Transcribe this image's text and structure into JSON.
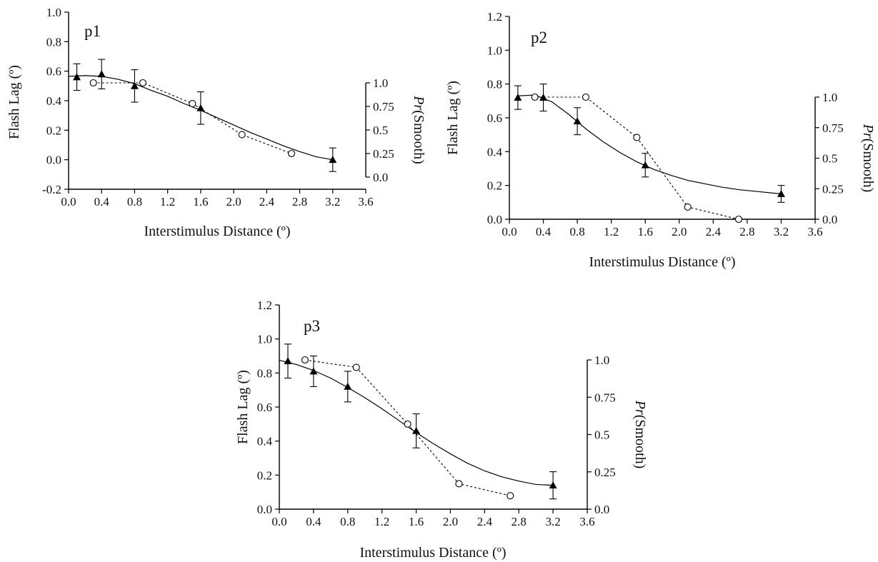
{
  "chart_data": [
    {
      "type": "line",
      "panel_label": "p1",
      "xlabel": "Interstimulus Distance (º)",
      "ylabel": "Flash Lag (º)",
      "y2label_italic": "Pr",
      "y2label_rest": "(Smooth)",
      "xlim": [
        0.0,
        3.6
      ],
      "xticks": [
        "0.0",
        "0.4",
        "0.8",
        "1.2",
        "1.6",
        "2.0",
        "2.4",
        "2.8",
        "3.2",
        "3.6"
      ],
      "ylim": [
        -0.2,
        1.0
      ],
      "yticks": [
        "-0.2",
        "0.0",
        "0.2",
        "0.4",
        "0.6",
        "0.8",
        "1.0"
      ],
      "y2lim": [
        0.0,
        1.0
      ],
      "y2ticks": [
        "0.0",
        "0.25",
        "0.5",
        "0.75",
        "1.0"
      ],
      "flash_lag": {
        "x": [
          0.1,
          0.4,
          0.8,
          1.6,
          3.2
        ],
        "y": [
          0.56,
          0.58,
          0.5,
          0.35,
          0.0
        ],
        "err": [
          0.09,
          0.1,
          0.11,
          0.11,
          0.08
        ]
      },
      "fit": {
        "x": [
          0.0,
          0.2,
          0.4,
          0.6,
          0.8,
          1.0,
          1.2,
          1.4,
          1.6,
          1.8,
          2.0,
          2.2,
          2.4,
          2.6,
          2.8,
          3.0,
          3.2
        ],
        "y": [
          0.565,
          0.57,
          0.565,
          0.545,
          0.515,
          0.47,
          0.43,
          0.38,
          0.335,
          0.285,
          0.235,
          0.185,
          0.14,
          0.095,
          0.055,
          0.02,
          0.0
        ]
      },
      "smooth": {
        "x": [
          0.3,
          0.9,
          1.5,
          2.1,
          2.7
        ],
        "y": [
          1.0,
          1.0,
          0.78,
          0.45,
          0.25
        ]
      }
    },
    {
      "type": "line",
      "panel_label": "p2",
      "xlabel": "Interstimulus Distance (º)",
      "ylabel": "Flash Lag (º)",
      "y2label_italic": "Pr",
      "y2label_rest": "(Smooth)",
      "xlim": [
        0.0,
        3.6
      ],
      "xticks": [
        "0.0",
        "0.4",
        "0.8",
        "1.2",
        "1.6",
        "2.0",
        "2.4",
        "2.8",
        "3.2",
        "3.6"
      ],
      "ylim": [
        0.0,
        1.2
      ],
      "yticks": [
        "0.0",
        "0.2",
        "0.4",
        "0.6",
        "0.8",
        "1.0",
        "1.2"
      ],
      "y2lim": [
        0.0,
        1.0
      ],
      "y2ticks": [
        "0.0",
        "0.25",
        "0.5",
        "0.75",
        "1.0"
      ],
      "flash_lag": {
        "x": [
          0.1,
          0.4,
          0.8,
          1.6,
          3.2
        ],
        "y": [
          0.72,
          0.72,
          0.58,
          0.32,
          0.15
        ],
        "err": [
          0.07,
          0.08,
          0.08,
          0.07,
          0.05
        ]
      },
      "fit": {
        "x": [
          0.1,
          0.3,
          0.5,
          0.7,
          0.9,
          1.1,
          1.3,
          1.5,
          1.7,
          1.9,
          2.1,
          2.3,
          2.5,
          2.7,
          2.9,
          3.2
        ],
        "y": [
          0.73,
          0.735,
          0.695,
          0.62,
          0.535,
          0.46,
          0.395,
          0.34,
          0.295,
          0.26,
          0.23,
          0.21,
          0.19,
          0.175,
          0.165,
          0.15
        ]
      },
      "smooth": {
        "x": [
          0.3,
          0.9,
          1.5,
          2.1,
          2.7
        ],
        "y": [
          1.0,
          1.0,
          0.67,
          0.1,
          0.0
        ]
      }
    },
    {
      "type": "line",
      "panel_label": "p3",
      "xlabel": "Interstimulus Distance (º)",
      "ylabel": "Flash Lag (º)",
      "y2label_italic": "Pr",
      "y2label_rest": "(Smooth)",
      "xlim": [
        0.0,
        3.6
      ],
      "xticks": [
        "0.0",
        "0.4",
        "0.8",
        "1.2",
        "1.6",
        "2.0",
        "2.4",
        "2.8",
        "3.2",
        "3.6"
      ],
      "ylim": [
        0.0,
        1.2
      ],
      "yticks": [
        "0.0",
        "0.2",
        "0.4",
        "0.6",
        "0.8",
        "1.0",
        "1.2"
      ],
      "y2lim": [
        0.0,
        1.0
      ],
      "y2ticks": [
        "0.0",
        "0.25",
        "0.5",
        "0.75",
        "1.0"
      ],
      "flash_lag": {
        "x": [
          0.1,
          0.4,
          0.8,
          1.6,
          3.2
        ],
        "y": [
          0.87,
          0.81,
          0.72,
          0.46,
          0.14
        ],
        "err": [
          0.1,
          0.09,
          0.09,
          0.1,
          0.08
        ]
      },
      "fit": {
        "x": [
          0.0,
          0.2,
          0.4,
          0.6,
          0.8,
          1.0,
          1.2,
          1.4,
          1.6,
          1.8,
          2.0,
          2.2,
          2.4,
          2.6,
          2.8,
          3.0,
          3.2
        ],
        "y": [
          0.875,
          0.85,
          0.815,
          0.77,
          0.715,
          0.655,
          0.59,
          0.52,
          0.45,
          0.385,
          0.325,
          0.27,
          0.225,
          0.19,
          0.165,
          0.145,
          0.14
        ]
      },
      "smooth": {
        "x": [
          0.3,
          0.9,
          1.5,
          2.1,
          2.7
        ],
        "y": [
          1.0,
          0.95,
          0.57,
          0.17,
          0.09
        ]
      }
    }
  ]
}
